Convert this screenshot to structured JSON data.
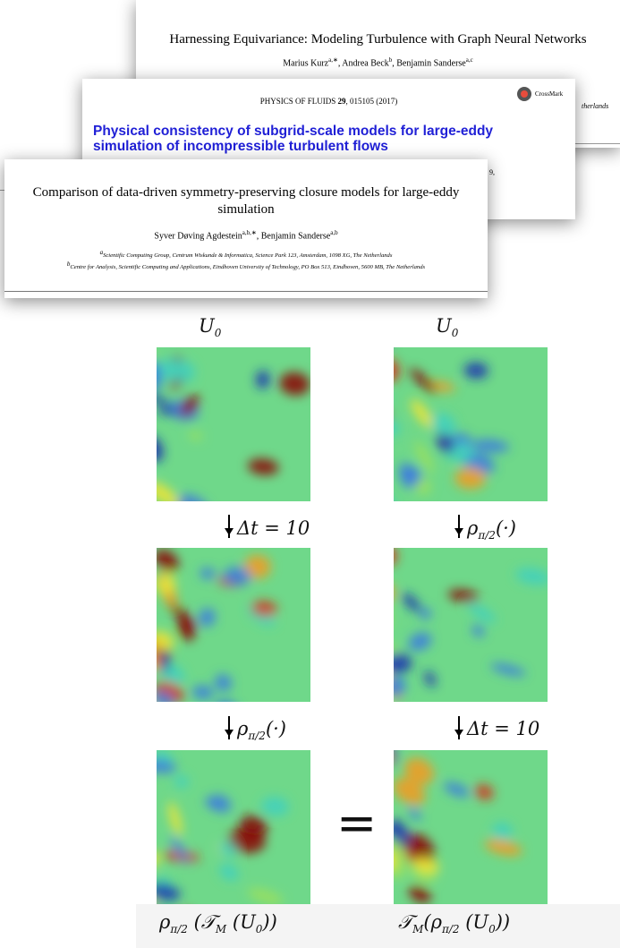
{
  "papers": [
    {
      "title": "Harnessing Equivariance: Modeling Turbulence with Graph Neural Networks",
      "authors": [
        {
          "name": "Marius Kurz",
          "sup": "a,∗"
        },
        {
          "name": "Andrea Beck",
          "sup": "b"
        },
        {
          "name": "Benjamin Sanderse",
          "sup": "a,c"
        }
      ],
      "fragment": "therlands"
    },
    {
      "journal": "PHYSICS OF FLUIDS",
      "volume": "29",
      "issue": ", 015105 (2017)",
      "badge": "CrossMark",
      "title": "Physical consistency of subgrid-scale models for large-eddy simulation of incompressible turbulent flows",
      "fragment": "9,"
    },
    {
      "title": "Comparison of data-driven symmetry-preserving closure models for large-eddy simulation",
      "authors": [
        {
          "name": "Syver Døving Agdestein",
          "sup": "a,b,∗"
        },
        {
          "name": "Benjamin Sanderse",
          "sup": "a,b"
        }
      ],
      "affiliations": [
        {
          "mark": "a",
          "text": "Scientific Computing Group, Centrum Wiskunde & Informatica, Science Park 123, Amsterdam, 1098 XG, The Netherlands"
        },
        {
          "mark": "b",
          "text": "Centre for Analysis, Scientific Computing and Applications, Eindhoven University of Technology, PO Box 513, Eindhoven, 5600 MB, The Netherlands"
        }
      ]
    }
  ],
  "diagram": {
    "labels": [
      [
        {
          "text": "U"
        },
        {
          "text": "0",
          "sub": true
        }
      ],
      [
        {
          "text": "U"
        },
        {
          "text": "0",
          "sub": true
        }
      ],
      [
        {
          "text": "Δt = 10"
        }
      ],
      [
        {
          "text": "ρ"
        },
        {
          "text": "π/2",
          "sub": true
        },
        {
          "text": "(·)"
        }
      ],
      [
        {
          "text": "ρ"
        },
        {
          "text": "π/2",
          "sub": true
        },
        {
          "text": "(·)"
        }
      ],
      [
        {
          "text": "Δt = 10"
        }
      ],
      [
        {
          "text": "ρ"
        },
        {
          "text": "π/2",
          "sub": true
        },
        {
          "text": " (𝒯"
        },
        {
          "text": "M",
          "sub": true
        },
        {
          "text": " (U"
        },
        {
          "text": "0",
          "sub": true
        },
        {
          "text": "))"
        }
      ],
      [
        {
          "text": "𝒯"
        },
        {
          "text": "M",
          "sub": true
        },
        {
          "text": "(ρ"
        },
        {
          "text": "π/2",
          "sub": true
        },
        {
          "text": " (U"
        },
        {
          "text": "0",
          "sub": true
        },
        {
          "text": "))"
        }
      ]
    ],
    "equals": "="
  }
}
